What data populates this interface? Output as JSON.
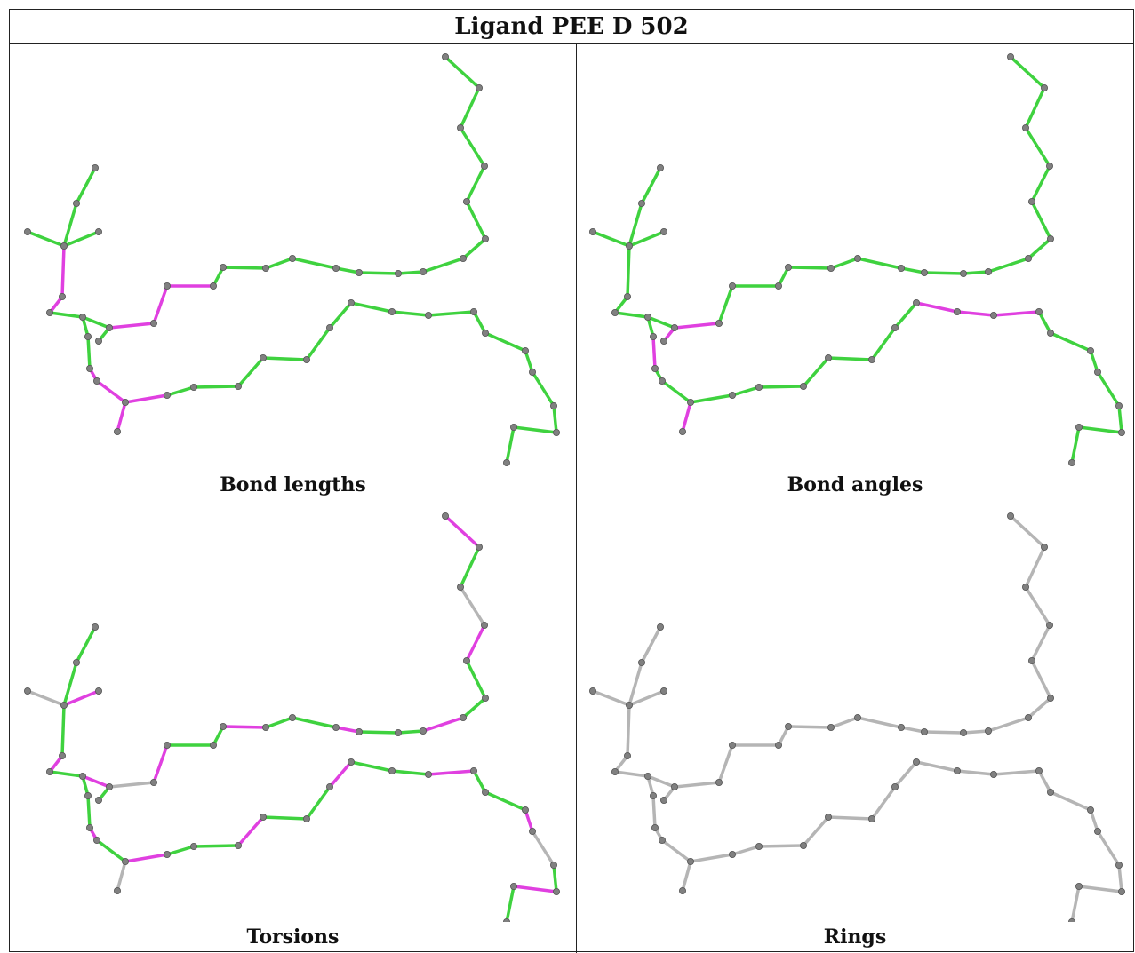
{
  "title": "Ligand PEE D 502",
  "panels": [
    {
      "key": "bond-lengths",
      "caption": "Bond lengths"
    },
    {
      "key": "bond-angles",
      "caption": "Bond angles"
    },
    {
      "key": "torsions",
      "caption": "Torsions"
    },
    {
      "key": "rings",
      "caption": "Rings"
    }
  ],
  "colors": {
    "ok": "#3fd23f",
    "outlier": "#e040e0",
    "neutral": "#b5b5b5",
    "atom": "#808080"
  }
}
